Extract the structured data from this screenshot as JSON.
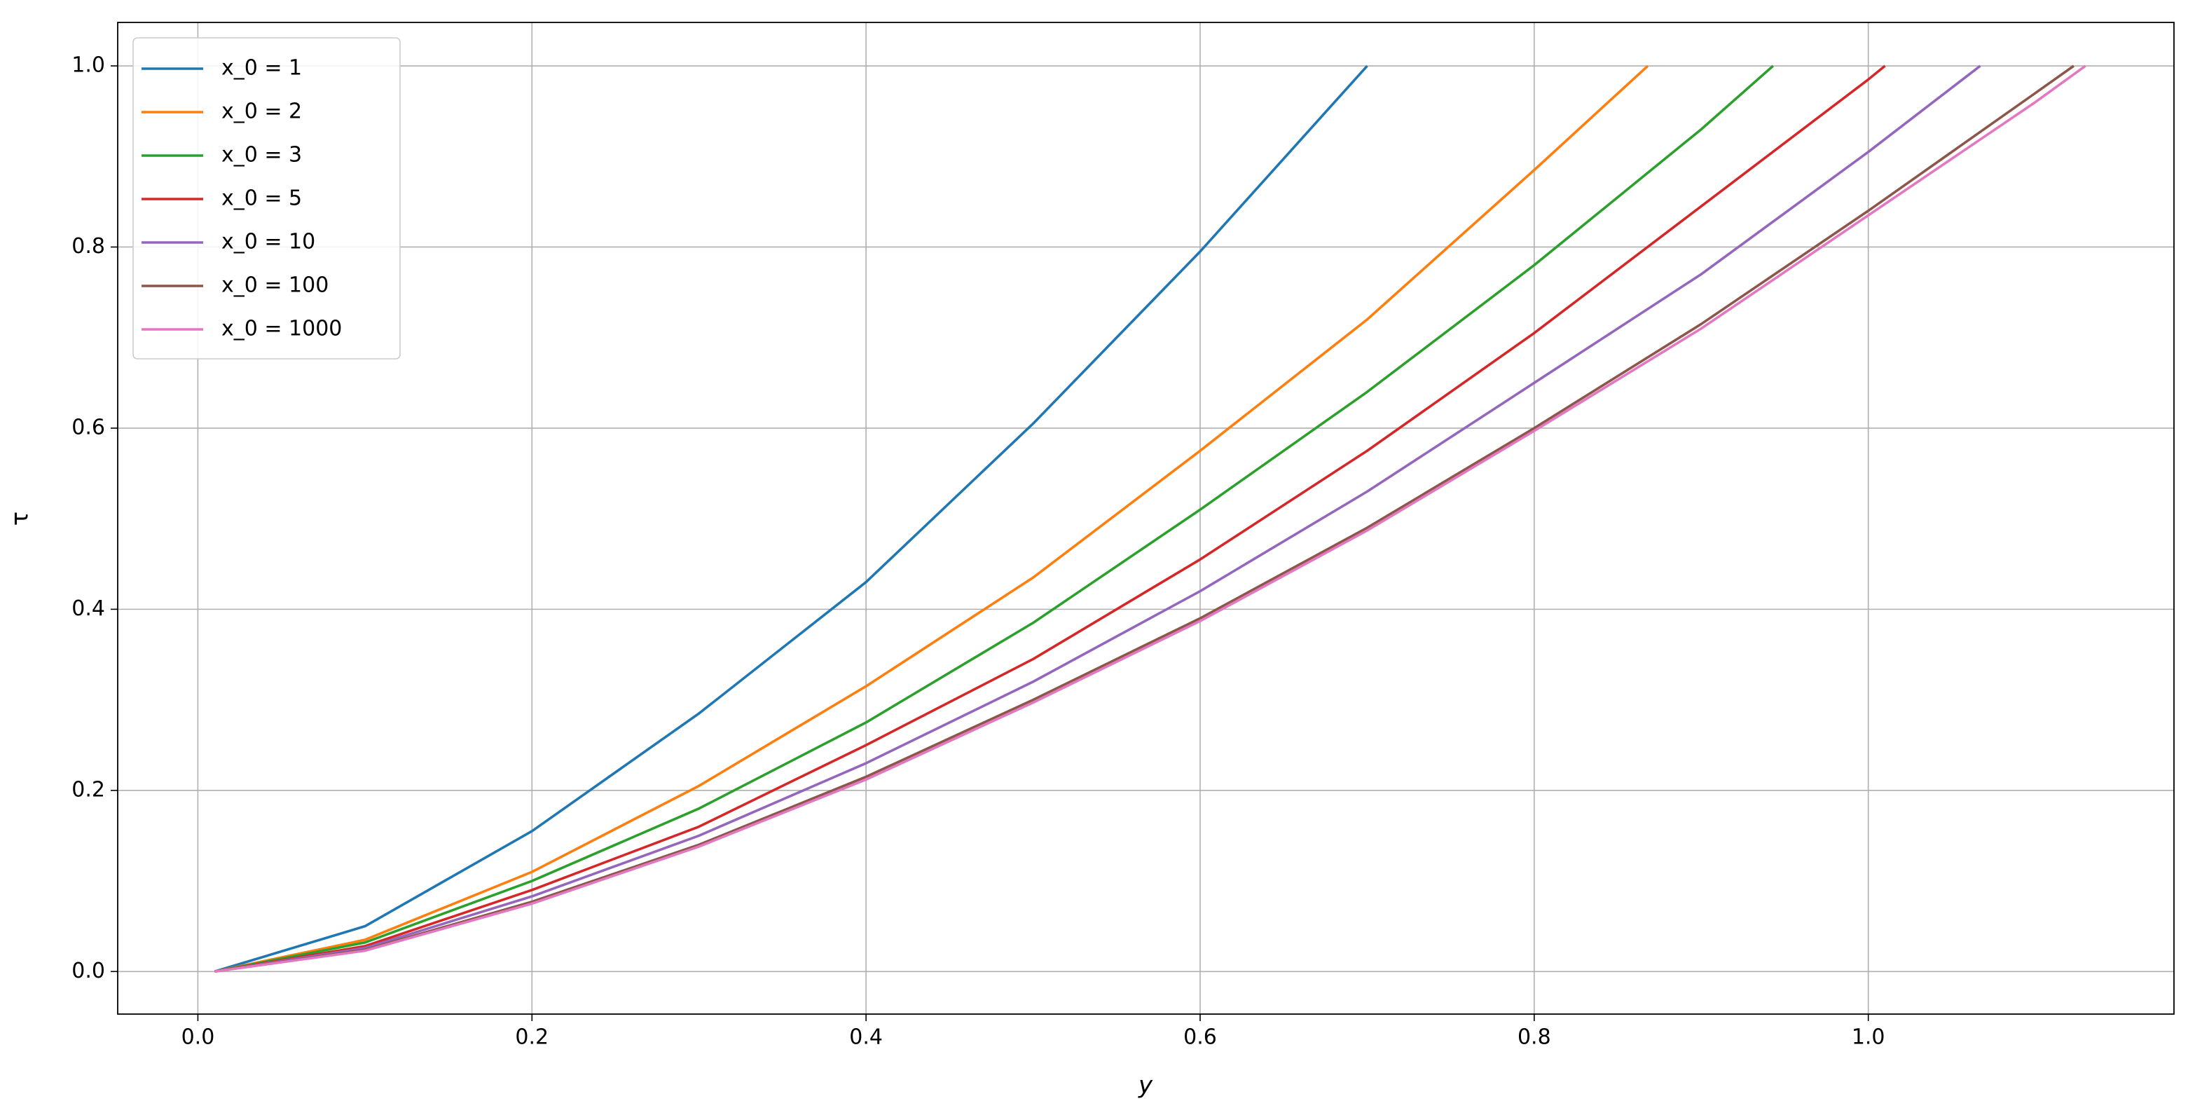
{
  "chart_data": {
    "type": "line",
    "xlabel": "y",
    "ylabel": "τ",
    "xlim": [
      -0.048,
      1.183
    ],
    "ylim": [
      -0.047,
      1.048
    ],
    "xticks": [
      {
        "value": 0,
        "label": "0.0"
      },
      0.2,
      0.4,
      0.6,
      0.8,
      {
        "value": 1,
        "label": "1.0"
      }
    ],
    "yticks": [
      {
        "value": 0,
        "label": "0.0"
      },
      0.2,
      0.4,
      0.6,
      0.8,
      {
        "value": 1,
        "label": "1.0"
      }
    ],
    "grid": true,
    "legend": "upper left",
    "series": [
      {
        "name": "x_0 = 1",
        "color": "#1f77b4",
        "x": [
          0.01,
          0.1,
          0.2,
          0.3,
          0.4,
          0.5,
          0.6,
          0.7
        ],
        "values": [
          0,
          0.05,
          0.155,
          0.285,
          0.43,
          0.605,
          0.795,
          1.0
        ]
      },
      {
        "name": "x_0 = 2",
        "color": "#ff7f0e",
        "x": [
          0.01,
          0.1,
          0.2,
          0.3,
          0.4,
          0.5,
          0.6,
          0.7,
          0.8,
          0.868
        ],
        "values": [
          0,
          0.035,
          0.11,
          0.205,
          0.315,
          0.435,
          0.575,
          0.72,
          0.885,
          1.0
        ]
      },
      {
        "name": "x_0 = 3",
        "color": "#2ca02c",
        "x": [
          0.01,
          0.1,
          0.2,
          0.3,
          0.4,
          0.5,
          0.6,
          0.7,
          0.8,
          0.9,
          0.943
        ],
        "values": [
          0,
          0.032,
          0.1,
          0.18,
          0.275,
          0.385,
          0.51,
          0.64,
          0.78,
          0.93,
          1.0
        ]
      },
      {
        "name": "x_0 = 5",
        "color": "#d62728",
        "x": [
          0.01,
          0.1,
          0.2,
          0.3,
          0.4,
          0.5,
          0.6,
          0.7,
          0.8,
          0.9,
          1.0,
          1.01
        ],
        "values": [
          0,
          0.028,
          0.09,
          0.16,
          0.25,
          0.345,
          0.455,
          0.575,
          0.705,
          0.845,
          0.985,
          1.0
        ]
      },
      {
        "name": "x_0 = 10",
        "color": "#9467bd",
        "x": [
          0.01,
          0.1,
          0.2,
          0.3,
          0.4,
          0.5,
          0.6,
          0.7,
          0.8,
          0.9,
          1.0,
          1.067
        ],
        "values": [
          0,
          0.026,
          0.083,
          0.15,
          0.23,
          0.32,
          0.42,
          0.53,
          0.65,
          0.77,
          0.905,
          1.0
        ]
      },
      {
        "name": "x_0 = 100",
        "color": "#8c564b",
        "x": [
          0.01,
          0.1,
          0.2,
          0.3,
          0.4,
          0.5,
          0.6,
          0.7,
          0.8,
          0.9,
          1.0,
          1.1,
          1.123
        ],
        "values": [
          0,
          0.024,
          0.077,
          0.14,
          0.215,
          0.3,
          0.39,
          0.49,
          0.6,
          0.715,
          0.84,
          0.97,
          1.0
        ]
      },
      {
        "name": "x_0 = 1000",
        "color": "#e377c2",
        "x": [
          0.01,
          0.1,
          0.2,
          0.3,
          0.4,
          0.5,
          0.6,
          0.7,
          0.8,
          0.9,
          1.0,
          1.1,
          1.13
        ],
        "values": [
          0,
          0.023,
          0.075,
          0.138,
          0.212,
          0.297,
          0.387,
          0.487,
          0.597,
          0.71,
          0.835,
          0.96,
          1.0
        ]
      }
    ]
  }
}
